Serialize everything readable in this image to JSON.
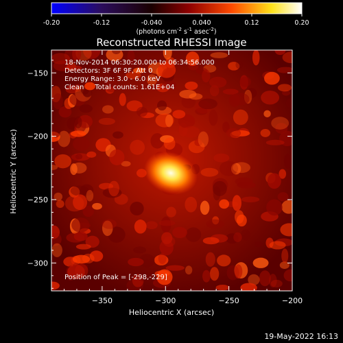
{
  "colorbar": {
    "ticks": [
      "-0.20",
      "-0.12",
      "-0.040",
      "0.040",
      "0.12",
      "0.20"
    ],
    "tick_values": [
      -0.2,
      -0.12,
      -0.04,
      0.04,
      0.12,
      0.2
    ],
    "range": [
      -0.2,
      0.2
    ],
    "units_prefix": "(photons cm",
    "units_exp1": "-2",
    "units_mid": " s",
    "units_exp2": "-1",
    "units_mid2": " asec",
    "units_exp3": "-2",
    "units_suffix": ")"
  },
  "chart_data": {
    "type": "heatmap",
    "title": "Reconstructed RHESSI Image",
    "xlabel": "Heliocentric X (arcsec)",
    "ylabel": "Heliocentric Y (arcsec)",
    "xlim": [
      -390,
      -200
    ],
    "ylim": [
      -322,
      -132
    ],
    "x_ticks": [
      -350,
      -300,
      -250,
      -200
    ],
    "y_ticks": [
      -150,
      -200,
      -250,
      -300
    ],
    "x_tick_labels": [
      "−350",
      "−300",
      "−250",
      "−200"
    ],
    "y_tick_labels": [
      "−150",
      "−200",
      "−250",
      "−300"
    ],
    "peak": {
      "x": -298,
      "y": -229
    },
    "colormap": [
      "#0000ff",
      "#2b0d5c",
      "#000000",
      "#8e0000",
      "#ff4a00",
      "#ffe21a",
      "#ffffff"
    ],
    "info_lines": [
      "18-Nov-2014 06:30:20.000 to 06:34:56.000",
      "Detectors: 3F 6F 9F, Att 0",
      "Energy Range: 3.0 - 6.0 keV",
      "Clean     Total counts: 1.61E+04"
    ],
    "peak_label": "Position of Peak = [-298,-229]"
  },
  "footer": {
    "timestamp": "19-May-2022 16:13"
  }
}
